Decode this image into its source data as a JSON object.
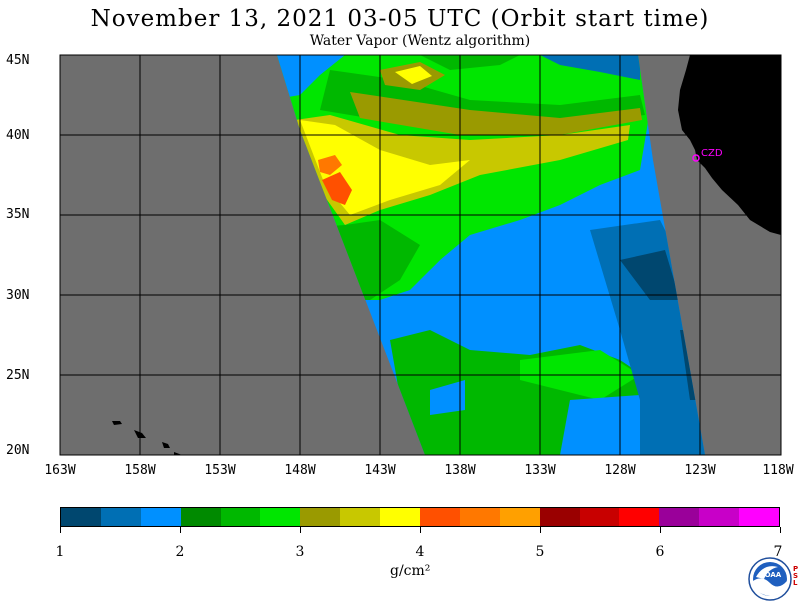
{
  "title": "November 13, 2021  03-05 UTC  (Orbit start time)",
  "subtitle": "Water Vapor (Wentz algorithm)",
  "lat_labels": [
    "45N",
    "40N",
    "35N",
    "30N",
    "25N",
    "20N"
  ],
  "lon_labels": [
    "163W",
    "158W",
    "153W",
    "148W",
    "143W",
    "138W",
    "133W",
    "128W",
    "123W",
    "118W"
  ],
  "station_label": "CZD",
  "colorbar": {
    "colors": [
      "#00476f",
      "#006fb4",
      "#0090ff",
      "#008a00",
      "#00b800",
      "#00e600",
      "#9a9a00",
      "#c8c800",
      "#ffff00",
      "#ff5000",
      "#ff7800",
      "#ffa000",
      "#9a0000",
      "#c80000",
      "#ff0000",
      "#9a009a",
      "#c800c8",
      "#ff00ff"
    ],
    "tick_labels": [
      "1",
      "2",
      "3",
      "4",
      "5",
      "6",
      "7"
    ],
    "unit": "g/cm²"
  },
  "map_colors": {
    "land": "#6e6e6e",
    "ocean_missing": "#000000",
    "grid": "#000000",
    "station": "#ff00ff"
  },
  "logo": {
    "name": "NOAA",
    "side_text": "PSL"
  }
}
